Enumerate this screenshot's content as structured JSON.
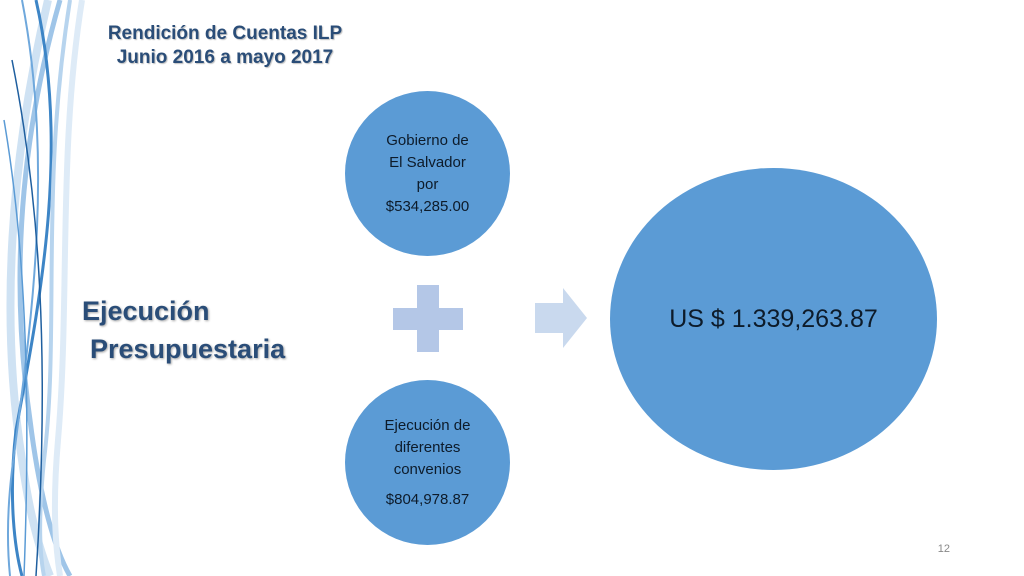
{
  "header": {
    "line1": "Rendición de Cuentas ILP",
    "line2": "Junio 2016 a mayo 2017"
  },
  "section_title": {
    "line1": "Ejecución",
    "line2": "Presupuestaria"
  },
  "circles": {
    "top": [
      "Gobierno de",
      "El Salvador",
      "por",
      "$534,285.00"
    ],
    "bottom": [
      "Ejecución de",
      "diferentes",
      "convenios"
    ],
    "bottom_amount": "$804,978.87",
    "total": "US $ 1.339,263.87"
  },
  "page_number": "12",
  "colors": {
    "circle_fill": "#5b9bd5",
    "plus_fill": "#b4c7e7",
    "arrow_fill": "#c9d9ee",
    "title_text": "#2a4d78"
  },
  "icons": [
    "plus-icon",
    "arrow-right-icon"
  ]
}
